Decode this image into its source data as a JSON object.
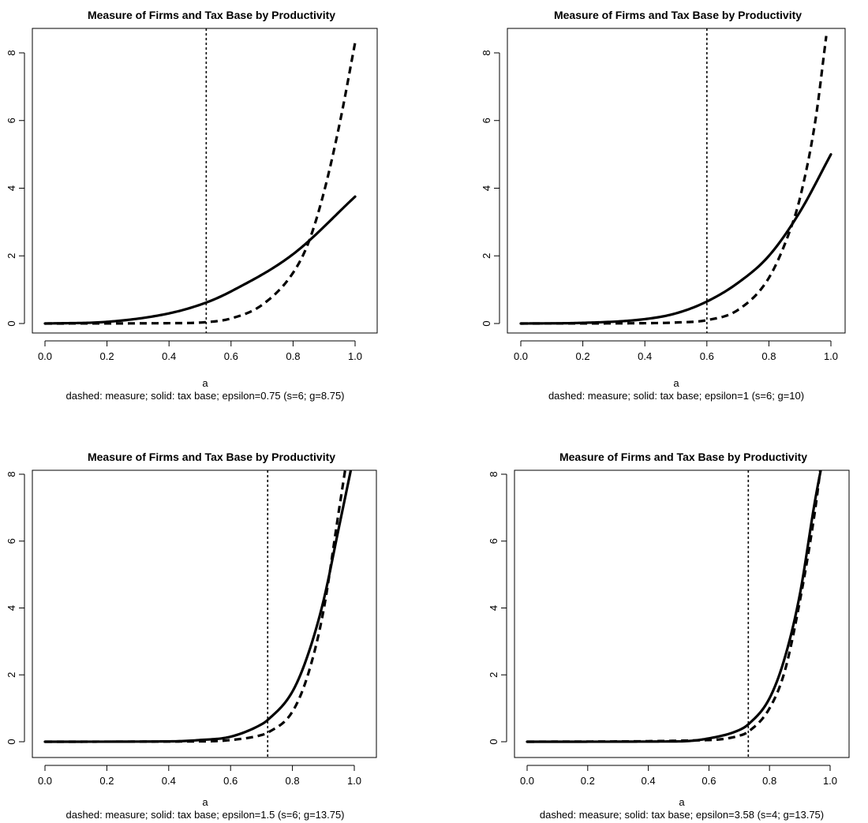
{
  "chart_data": [
    {
      "type": "line",
      "title": "Measure of Firms and Tax Base by Productivity",
      "xlabel": "a",
      "subtitle": "dashed: measure; solid: tax base; epsilon=0.75 (s=6; g=8.75)",
      "xlim": [
        0,
        1
      ],
      "ylim": [
        0,
        8
      ],
      "xticks": [
        "0.0",
        "0.2",
        "0.4",
        "0.6",
        "0.8",
        "1.0"
      ],
      "yticks": [
        "0",
        "2",
        "4",
        "6",
        "8"
      ],
      "vline": 0.52,
      "series": [
        {
          "style": "solid",
          "x": [
            0,
            0.2,
            0.4,
            0.52,
            0.6,
            0.8,
            1.0
          ],
          "y": [
            0,
            0.05,
            0.3,
            0.62,
            0.95,
            2.05,
            3.75
          ]
        },
        {
          "style": "dashed",
          "x": [
            0,
            0.4,
            0.52,
            0.6,
            0.7,
            0.8,
            0.85,
            0.9,
            0.95,
            1.0
          ],
          "y": [
            0,
            0.01,
            0.04,
            0.15,
            0.55,
            1.5,
            2.4,
            3.9,
            5.9,
            8.3
          ]
        }
      ]
    },
    {
      "type": "line",
      "title": "Measure of Firms and Tax Base by Productivity",
      "xlabel": "a",
      "subtitle": "dashed: measure; solid: tax base; epsilon=1 (s=6; g=10)",
      "xlim": [
        0,
        1
      ],
      "ylim": [
        0,
        8
      ],
      "xticks": [
        "0.0",
        "0.2",
        "0.4",
        "0.6",
        "0.8",
        "1.0"
      ],
      "yticks": [
        "0",
        "2",
        "4",
        "6",
        "8"
      ],
      "vline": 0.6,
      "series": [
        {
          "style": "solid",
          "x": [
            0,
            0.2,
            0.4,
            0.5,
            0.6,
            0.7,
            0.8,
            0.9,
            1.0
          ],
          "y": [
            0,
            0.02,
            0.13,
            0.3,
            0.65,
            1.2,
            2.0,
            3.3,
            5.0
          ]
        },
        {
          "style": "dashed",
          "x": [
            0,
            0.4,
            0.5,
            0.6,
            0.7,
            0.8,
            0.87,
            0.9,
            0.95,
            0.985
          ],
          "y": [
            0,
            0.01,
            0.03,
            0.1,
            0.4,
            1.35,
            2.8,
            3.7,
            6.0,
            8.5
          ]
        }
      ]
    },
    {
      "type": "line",
      "title": "Measure of Firms and Tax Base by Productivity",
      "xlabel": "a",
      "subtitle": "dashed: measure; solid: tax base; epsilon=1.5 (s=6; g=13.75)",
      "xlim": [
        0,
        1
      ],
      "ylim": [
        0,
        8
      ],
      "xticks": [
        "0.0",
        "0.2",
        "0.4",
        "0.6",
        "0.8",
        "1.0"
      ],
      "yticks": [
        "0",
        "2",
        "4",
        "6",
        "8"
      ],
      "vline": 0.72,
      "series": [
        {
          "style": "solid",
          "x": [
            0,
            0.4,
            0.5,
            0.6,
            0.7,
            0.72,
            0.8,
            0.85,
            0.9,
            0.95,
            0.995
          ],
          "y": [
            0,
            0.01,
            0.05,
            0.15,
            0.52,
            0.65,
            1.5,
            2.6,
            4.2,
            6.4,
            8.4
          ]
        },
        {
          "style": "dashed",
          "x": [
            0,
            0.5,
            0.6,
            0.7,
            0.72,
            0.8,
            0.85,
            0.9,
            0.95,
            0.975
          ],
          "y": [
            0,
            0.01,
            0.05,
            0.2,
            0.27,
            0.9,
            2.0,
            3.9,
            6.9,
            8.4
          ]
        }
      ]
    },
    {
      "type": "line",
      "title": "Measure of Firms and Tax Base by Productivity",
      "xlabel": "a",
      "subtitle": "dashed: measure; solid: tax base; epsilon=3.58 (s=4; g=13.75)",
      "xlim": [
        0,
        1
      ],
      "ylim": [
        0,
        8
      ],
      "xticks": [
        "0.0",
        "0.2",
        "0.4",
        "0.6",
        "0.8",
        "1.0"
      ],
      "yticks": [
        "0",
        "2",
        "4",
        "6",
        "8"
      ],
      "vline": 0.73,
      "series": [
        {
          "style": "solid",
          "x": [
            0,
            0.5,
            0.6,
            0.7,
            0.73,
            0.8,
            0.85,
            0.9,
            0.95,
            0.975
          ],
          "y": [
            0,
            0.01,
            0.1,
            0.35,
            0.52,
            1.3,
            2.5,
            4.4,
            7.2,
            8.4
          ]
        },
        {
          "style": "dashed",
          "x": [
            0,
            0.6,
            0.7,
            0.73,
            0.8,
            0.85,
            0.9,
            0.95,
            0.97
          ],
          "y": [
            0,
            0.05,
            0.18,
            0.3,
            1.0,
            2.1,
            4.2,
            6.9,
            8.3
          ]
        }
      ]
    }
  ]
}
